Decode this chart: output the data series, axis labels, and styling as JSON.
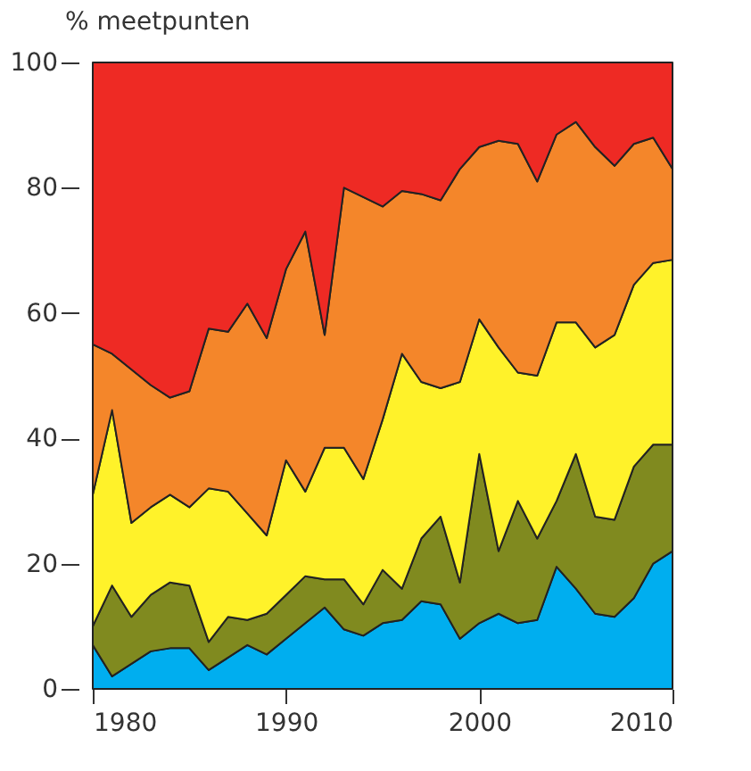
{
  "chart_data": {
    "type": "area",
    "stacked": true,
    "ylabel": "% meetpunten",
    "x": [
      1980,
      1981,
      1982,
      1983,
      1984,
      1985,
      1986,
      1987,
      1988,
      1989,
      1990,
      1991,
      1992,
      1993,
      1994,
      1995,
      1996,
      1997,
      1998,
      1999,
      2000,
      2001,
      2002,
      2003,
      2004,
      2005,
      2006,
      2007,
      2008,
      2009,
      2010
    ],
    "series": [
      {
        "color": "#00aeef",
        "values": [
          7,
          2,
          4,
          6,
          6.5,
          6.5,
          3,
          5,
          7,
          5.5,
          8,
          10.5,
          13,
          9.5,
          8.5,
          10.5,
          11,
          14,
          13.5,
          8,
          10.5,
          12,
          10.5,
          11,
          19.5,
          16,
          12,
          11.5,
          14.5,
          20,
          22
        ]
      },
      {
        "color": "#808a1f",
        "values": [
          3,
          14.5,
          7.5,
          9,
          10.5,
          10,
          4.5,
          6.5,
          4,
          6.5,
          7,
          7.5,
          4.5,
          8,
          5,
          8.5,
          5,
          10,
          14,
          9,
          27,
          10,
          19.5,
          13,
          10.5,
          21.5,
          15.5,
          15.5,
          21,
          19,
          17
        ]
      },
      {
        "color": "#fff22a",
        "values": [
          21,
          28,
          15,
          14,
          14,
          12.5,
          24.5,
          20,
          17,
          12.5,
          21.5,
          13.5,
          21,
          21,
          20,
          24,
          37.5,
          25,
          20.5,
          32,
          21.5,
          32.5,
          20.5,
          26,
          28.5,
          21,
          27,
          29.5,
          29,
          29,
          29.5
        ]
      },
      {
        "color": "#f4862a",
        "values": [
          24,
          9,
          24.5,
          19.5,
          15.5,
          18.5,
          25.5,
          25.5,
          33.5,
          31.5,
          30.5,
          41.5,
          18,
          41.5,
          45,
          34,
          26,
          30,
          30,
          34,
          27.5,
          33,
          36.5,
          31,
          30,
          32,
          32,
          27,
          22.5,
          20,
          14.5
        ]
      },
      {
        "color": "#ee2a24",
        "values": [
          45,
          46.5,
          49,
          51.5,
          53.5,
          52.5,
          42.5,
          43,
          38.5,
          44,
          33,
          27,
          43.5,
          20,
          21.5,
          23,
          20.5,
          21,
          22,
          17,
          13.5,
          12.5,
          13,
          19,
          11.5,
          9.5,
          13.5,
          16.5,
          13,
          12,
          17
        ]
      }
    ],
    "xlim": [
      1980,
      2010
    ],
    "xticks": [
      1980,
      1990,
      2000,
      2010
    ],
    "ylim": [
      0,
      100
    ],
    "yticks": [
      0,
      20,
      40,
      60,
      80,
      100
    ],
    "grid": false,
    "legend": false
  }
}
